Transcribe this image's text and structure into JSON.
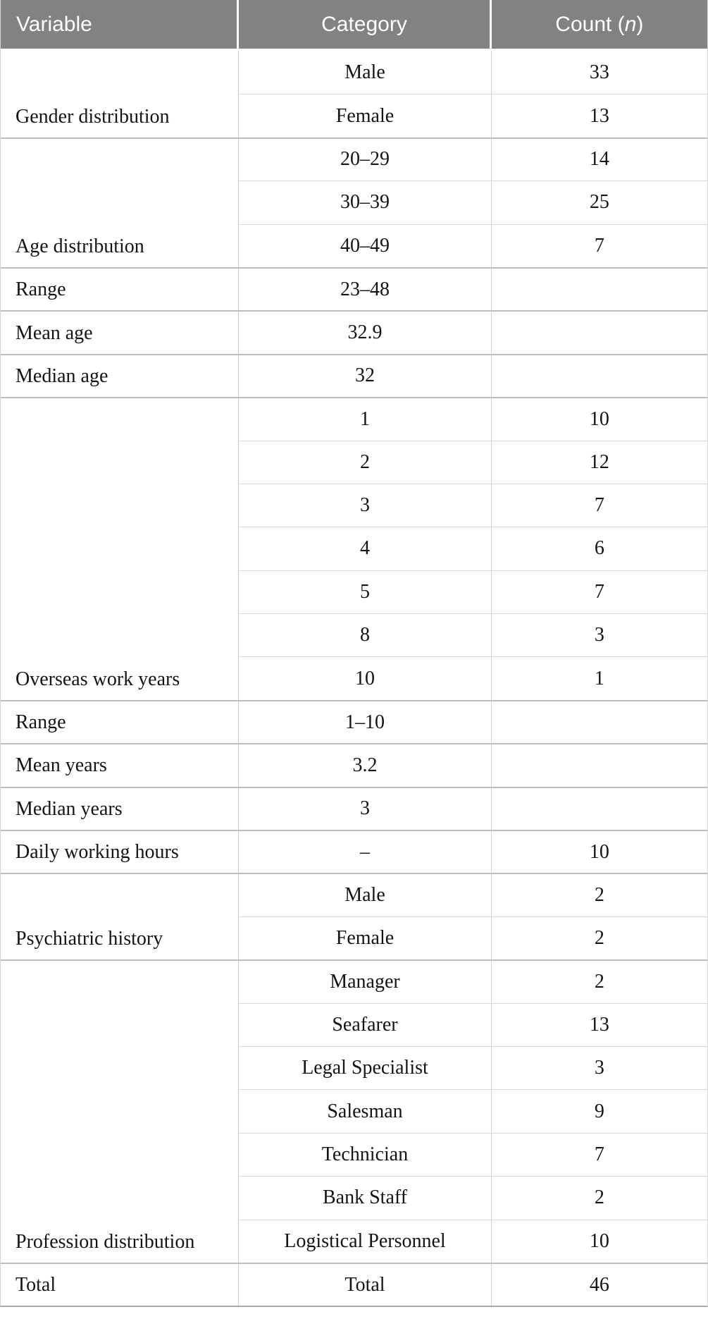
{
  "table": {
    "header": {
      "variable": "Variable",
      "category": "Category",
      "count": {
        "prefix": "Count (",
        "italic": "n",
        "suffix": ")"
      }
    },
    "sections": [
      {
        "variable": "Gender distribution",
        "rows": [
          {
            "category": "Male",
            "count": "33"
          },
          {
            "category": "Female",
            "count": "13"
          }
        ]
      },
      {
        "variable": "Age distribution",
        "rows": [
          {
            "category": "20–29",
            "count": "14"
          },
          {
            "category": "30–39",
            "count": "25"
          },
          {
            "category": "40–49",
            "count": "7"
          }
        ]
      },
      {
        "variable": "Range",
        "rows": [
          {
            "category": "23–48",
            "count": ""
          }
        ]
      },
      {
        "variable": "Mean age",
        "rows": [
          {
            "category": "32.9",
            "count": ""
          }
        ]
      },
      {
        "variable": "Median age",
        "rows": [
          {
            "category": "32",
            "count": ""
          }
        ]
      },
      {
        "variable": "Overseas work years",
        "rows": [
          {
            "category": "1",
            "count": "10"
          },
          {
            "category": "2",
            "count": "12"
          },
          {
            "category": "3",
            "count": "7"
          },
          {
            "category": "4",
            "count": "6"
          },
          {
            "category": "5",
            "count": "7"
          },
          {
            "category": "8",
            "count": "3"
          },
          {
            "category": "10",
            "count": "1"
          }
        ]
      },
      {
        "variable": "Range",
        "rows": [
          {
            "category": "1–10",
            "count": ""
          }
        ]
      },
      {
        "variable": "Mean years",
        "rows": [
          {
            "category": "3.2",
            "count": ""
          }
        ]
      },
      {
        "variable": "Median years",
        "rows": [
          {
            "category": "3",
            "count": ""
          }
        ]
      },
      {
        "variable": "Daily working hours",
        "rows": [
          {
            "category": "–",
            "count": "10"
          }
        ]
      },
      {
        "variable": "Psychiatric history",
        "rows": [
          {
            "category": "Male",
            "count": "2"
          },
          {
            "category": "Female",
            "count": "2"
          }
        ]
      },
      {
        "variable": "Profession distribution",
        "rows": [
          {
            "category": "Manager",
            "count": "2"
          },
          {
            "category": "Seafarer",
            "count": "13"
          },
          {
            "category": "Legal Specialist",
            "count": "3"
          },
          {
            "category": "Salesman",
            "count": "9"
          },
          {
            "category": "Technician",
            "count": "7"
          },
          {
            "category": "Bank Staff",
            "count": "2"
          },
          {
            "category": "Logistical Personnel",
            "count": "10"
          }
        ]
      },
      {
        "variable": "Total",
        "rows": [
          {
            "category": "Total",
            "count": "46"
          }
        ]
      }
    ],
    "colors": {
      "header_bg": "#828282",
      "header_text": "#ffffff",
      "body_text": "#141414",
      "row_divider": "#d9d9d9",
      "section_divider": "#bdbdbd",
      "column_divider": "#d0d0d0",
      "bottom_border": "#a8a8a8"
    }
  }
}
